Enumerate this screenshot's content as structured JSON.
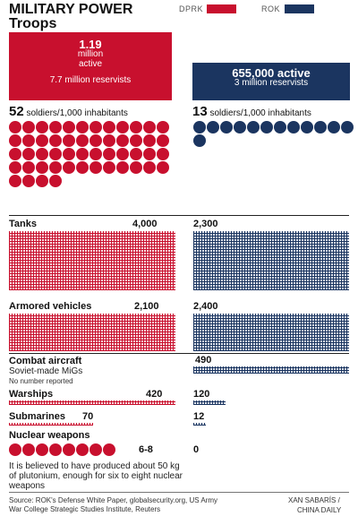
{
  "title": "MILITARY POWER",
  "subtitle": "Troops",
  "legend": [
    {
      "label": "DPRK",
      "color": "#c8102e"
    },
    {
      "label": "ROK",
      "color": "#1b3560"
    }
  ],
  "troops": {
    "dprk_active_number": "1.19",
    "dprk_active_unit": "million",
    "dprk_active_label": "active",
    "dprk_reservists": "7.7 million reservists",
    "rok_active": "655,000 active",
    "rok_reservists": "3 million reservists"
  },
  "density": {
    "dprk_value": "52",
    "dprk_label": " soldiers/1,000 inhabitants",
    "rok_value": "13",
    "rok_label": " soldiers/1,000 inhabitants"
  },
  "categories": {
    "tanks": "Tanks",
    "armored": "Armored vehicles",
    "aircraft": "Combat aircraft",
    "aircraft_note": "Soviet-made MiGs",
    "aircraft_note2": "No number reported",
    "warships": "Warships",
    "submarines": "Submarines",
    "nuclear": "Nuclear weapons",
    "nuclear_note": "It is believed to have produced about 50 kg of plutonium, enough for six to eight nuclear weapons"
  },
  "labels": {
    "tanks_dprk": "4,000",
    "tanks_rok": "2,300",
    "armored_dprk": "2,100",
    "armored_rok": "2,400",
    "aircraft_rok": "490",
    "warships_dprk": "420",
    "warships_rok": "120",
    "subs_dprk": "70",
    "subs_rok": "12",
    "nuclear_dprk": "6-8",
    "nuclear_rok": "0"
  },
  "source": "Source: ROK's Defense White Paper, globalsecurity.org, US Army War College Strategic Studies Institute, Reuters",
  "credit_1": "XAN SABARÍS /",
  "credit_2": "CHINA DAILY",
  "chart_data": {
    "type": "bar",
    "title": "MILITARY POWER",
    "series": [
      {
        "name": "DPRK",
        "color": "#c8102e"
      },
      {
        "name": "ROK",
        "color": "#1b3560"
      }
    ],
    "metrics": [
      {
        "metric": "Troops (active)",
        "DPRK": 1190000,
        "ROK": 655000
      },
      {
        "metric": "Reservists",
        "DPRK": 7700000,
        "ROK": 3000000
      },
      {
        "metric": "soldiers/1,000 inhabitants",
        "DPRK": 52,
        "ROK": 13
      },
      {
        "metric": "Tanks",
        "DPRK": 4000,
        "ROK": 2300
      },
      {
        "metric": "Armored vehicles",
        "DPRK": 2100,
        "ROK": 2400
      },
      {
        "metric": "Combat aircraft",
        "DPRK": null,
        "ROK": 490
      },
      {
        "metric": "Warships",
        "DPRK": 420,
        "ROK": 120
      },
      {
        "metric": "Submarines",
        "DPRK": 70,
        "ROK": 12
      },
      {
        "metric": "Nuclear weapons",
        "DPRK": "6-8",
        "ROK": 0
      }
    ],
    "legend_position": "top-right"
  }
}
